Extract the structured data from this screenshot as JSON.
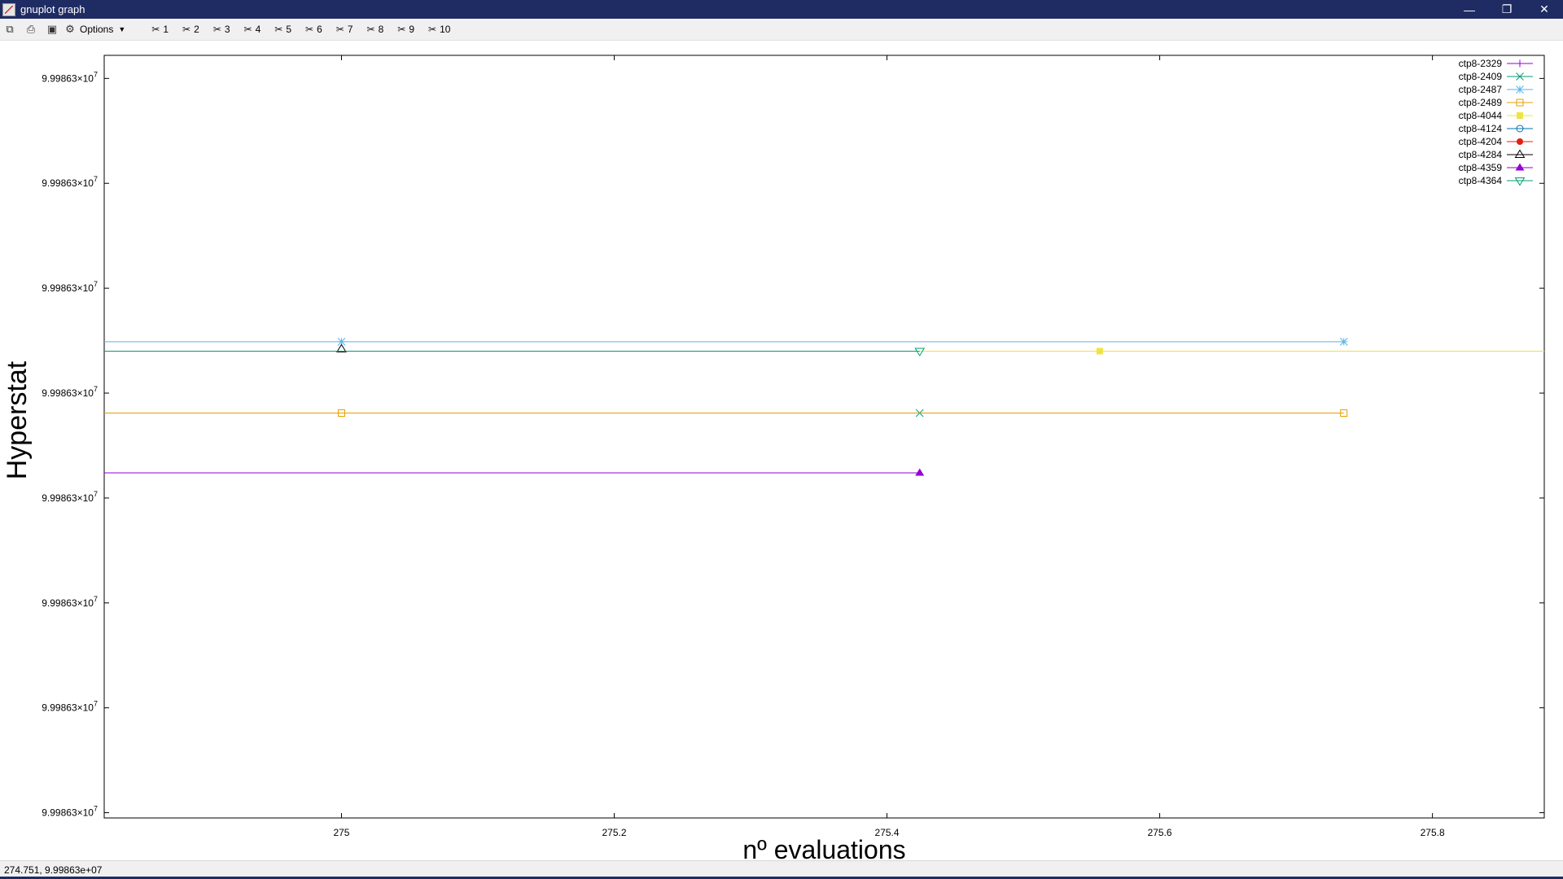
{
  "window": {
    "title": "gnuplot graph",
    "controls": {
      "minimize": "—",
      "maximize": "❐",
      "close": "✕"
    }
  },
  "toolbar": {
    "options_label": "Options",
    "toggles": [
      "1",
      "2",
      "3",
      "4",
      "5",
      "6",
      "7",
      "8",
      "9",
      "10"
    ]
  },
  "status": {
    "coords": "274.751,  9.99863e+07"
  },
  "colors": {
    "titlebar": "#1f2c63",
    "ctp8-2329": "#9400d3",
    "ctp8-2409": "#009e73",
    "ctp8-2487": "#56b4e9",
    "ctp8-2489": "#e69f00",
    "ctp8-4044": "#f0e442",
    "ctp8-4124": "#0072b2",
    "ctp8-4204": "#e51e10",
    "ctp8-4284": "#000000",
    "ctp8-4359": "#9400d3",
    "ctp8-4364": "#009e73"
  },
  "chart_data": {
    "type": "line",
    "xlabel": "nº evaluations",
    "ylabel": "Hyperstat",
    "xlim": [
      274.826,
      275.882
    ],
    "x_ticks": [
      275,
      275.2,
      275.4,
      275.6,
      275.8
    ],
    "x_tick_labels": [
      "275",
      "275.2",
      "275.4",
      "275.6",
      "275.8"
    ],
    "ylim": [
      0,
      7.27
    ],
    "y_ticks": [
      0.05,
      1.05,
      2.05,
      3.05,
      4.05,
      5.05,
      6.05,
      7.05
    ],
    "y_tick_mantissa": "9.99863×10",
    "y_tick_exponent": "7",
    "grid": false,
    "legend_position": "top-right",
    "series": [
      {
        "name": "ctp8-2329",
        "marker": "plus",
        "points": []
      },
      {
        "name": "ctp8-2409",
        "marker": "cross",
        "points": [
          [
            275.424,
            3.86
          ]
        ]
      },
      {
        "name": "ctp8-2487",
        "marker": "star",
        "points": [
          [
            274.826,
            4.54
          ],
          [
            275.0,
            4.54
          ],
          [
            275.735,
            4.54
          ]
        ],
        "line": [
          [
            274.826,
            4.54
          ],
          [
            275.735,
            4.54
          ]
        ]
      },
      {
        "name": "ctp8-2489",
        "marker": "open-square",
        "points": [
          [
            275.0,
            3.86
          ],
          [
            275.735,
            3.86
          ]
        ],
        "line": [
          [
            274.826,
            3.86
          ],
          [
            275.735,
            3.86
          ]
        ]
      },
      {
        "name": "ctp8-4044",
        "marker": "filled-square",
        "points": [
          [
            275.556,
            4.45
          ]
        ],
        "line": [
          [
            275.424,
            4.45
          ],
          [
            275.882,
            4.45
          ]
        ]
      },
      {
        "name": "ctp8-4124",
        "marker": "open-circle",
        "points": []
      },
      {
        "name": "ctp8-4204",
        "marker": "filled-circle",
        "points": []
      },
      {
        "name": "ctp8-4284",
        "marker": "open-triangle",
        "points": [
          [
            275.0,
            4.47
          ]
        ]
      },
      {
        "name": "ctp8-4359",
        "marker": "filled-triangle",
        "points": [
          [
            275.424,
            3.29
          ]
        ],
        "line": [
          [
            274.826,
            3.29
          ],
          [
            275.424,
            3.29
          ]
        ]
      },
      {
        "name": "ctp8-4364",
        "marker": "open-inverted-triangle",
        "points": [
          [
            275.424,
            4.45
          ]
        ],
        "line": [
          [
            274.826,
            4.45
          ],
          [
            275.424,
            4.45
          ]
        ]
      }
    ]
  }
}
